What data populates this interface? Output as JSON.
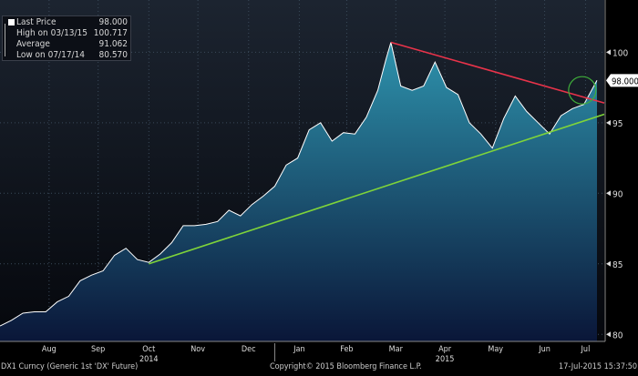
{
  "legend": [
    {
      "label": "Last Price",
      "value": "98.000",
      "icon": "square-icon"
    },
    {
      "label": "High on 03/13/15",
      "value": "100.717",
      "icon": "high-marker-icon"
    },
    {
      "label": "Average",
      "value": "91.062",
      "icon": "average-marker-icon"
    },
    {
      "label": "Low on 07/17/14",
      "value": "80.570",
      "icon": "low-marker-icon"
    }
  ],
  "footer": {
    "left": "DX1 Curncy (Generic 1st 'DX' Future)",
    "center": "Copyright© 2015 Bloomberg Finance L.P.",
    "right": "17-Jul-2015 15:37:50"
  },
  "chart_data": {
    "type": "area",
    "title": "DX1 Curncy (Generic 1st 'DX' Future)",
    "last_price_label": "98.000",
    "ylim": [
      79.5,
      103.7
    ],
    "yticks": [
      "80",
      "85",
      "90",
      "95",
      "100"
    ],
    "xlim": [
      "2014-07-17",
      "2015-07-17"
    ],
    "months": [
      {
        "label": "Aug",
        "date": "2014-08-16"
      },
      {
        "label": "Sep",
        "date": "2014-09-15"
      },
      {
        "label": "Oct",
        "date": "2014-10-16"
      },
      {
        "label": "Nov",
        "date": "2014-11-15"
      },
      {
        "label": "Dec",
        "date": "2014-12-16"
      },
      {
        "label": "Jan",
        "date": "2015-01-16"
      },
      {
        "label": "Feb",
        "date": "2015-02-14"
      },
      {
        "label": "Mar",
        "date": "2015-03-16"
      },
      {
        "label": "Apr",
        "date": "2015-04-15"
      },
      {
        "label": "May",
        "date": "2015-05-16"
      },
      {
        "label": "Jun",
        "date": "2015-06-15"
      },
      {
        "label": "Jul",
        "date": "2015-07-10"
      }
    ],
    "years": [
      {
        "label": "2014",
        "date": "2014-10-16"
      },
      {
        "label": "2015",
        "date": "2015-04-15"
      }
    ],
    "grid": true,
    "series": [
      {
        "name": "Last Price",
        "color": "#ffffff",
        "fill_top": "#2e93ad",
        "fill_bottom": "#0a1638",
        "dates": [
          "2014-07-17",
          "2014-07-24",
          "2014-07-31",
          "2014-08-07",
          "2014-08-14",
          "2014-08-21",
          "2014-08-28",
          "2014-09-04",
          "2014-09-11",
          "2014-09-18",
          "2014-09-25",
          "2014-10-02",
          "2014-10-09",
          "2014-10-16",
          "2014-10-23",
          "2014-10-30",
          "2014-11-06",
          "2014-11-13",
          "2014-11-20",
          "2014-11-27",
          "2014-12-04",
          "2014-12-11",
          "2014-12-18",
          "2014-12-25",
          "2015-01-01",
          "2015-01-08",
          "2015-01-15",
          "2015-01-22",
          "2015-01-29",
          "2015-02-05",
          "2015-02-12",
          "2015-02-19",
          "2015-02-26",
          "2015-03-05",
          "2015-03-10",
          "2015-03-13",
          "2015-03-19",
          "2015-03-26",
          "2015-04-02",
          "2015-04-09",
          "2015-04-16",
          "2015-04-23",
          "2015-04-30",
          "2015-05-07",
          "2015-05-14",
          "2015-05-21",
          "2015-05-28",
          "2015-06-04",
          "2015-06-11",
          "2015-06-18",
          "2015-06-25",
          "2015-07-02",
          "2015-07-09",
          "2015-07-17"
        ],
        "values": [
          80.6,
          81.0,
          81.5,
          81.6,
          81.6,
          82.3,
          82.7,
          83.8,
          84.2,
          84.5,
          85.6,
          86.1,
          85.3,
          85.1,
          85.7,
          86.5,
          87.7,
          87.7,
          87.8,
          88.0,
          88.8,
          88.4,
          89.2,
          89.8,
          90.5,
          92.0,
          92.5,
          94.5,
          95.0,
          93.7,
          94.3,
          94.2,
          95.4,
          97.3,
          99.5,
          100.7,
          97.6,
          97.3,
          97.6,
          99.3,
          97.5,
          97.0,
          95.0,
          94.2,
          93.2,
          95.3,
          96.9,
          95.8,
          95.0,
          94.2,
          95.5,
          96.0,
          96.3,
          98.0
        ]
      }
    ],
    "annotations": [
      {
        "type": "trendline",
        "color": "#7fd43a",
        "from": {
          "date": "2014-10-16",
          "value": 85.0
        },
        "to": {
          "date": "2015-07-17",
          "value": 95.6
        }
      },
      {
        "type": "trendline",
        "color": "#e8334a",
        "from": {
          "date": "2015-03-13",
          "value": 100.7
        },
        "to": {
          "date": "2015-07-17",
          "value": 96.4
        }
      },
      {
        "type": "circle",
        "color": "#3fae3a",
        "date": "2015-07-08",
        "value": 97.3
      }
    ]
  }
}
